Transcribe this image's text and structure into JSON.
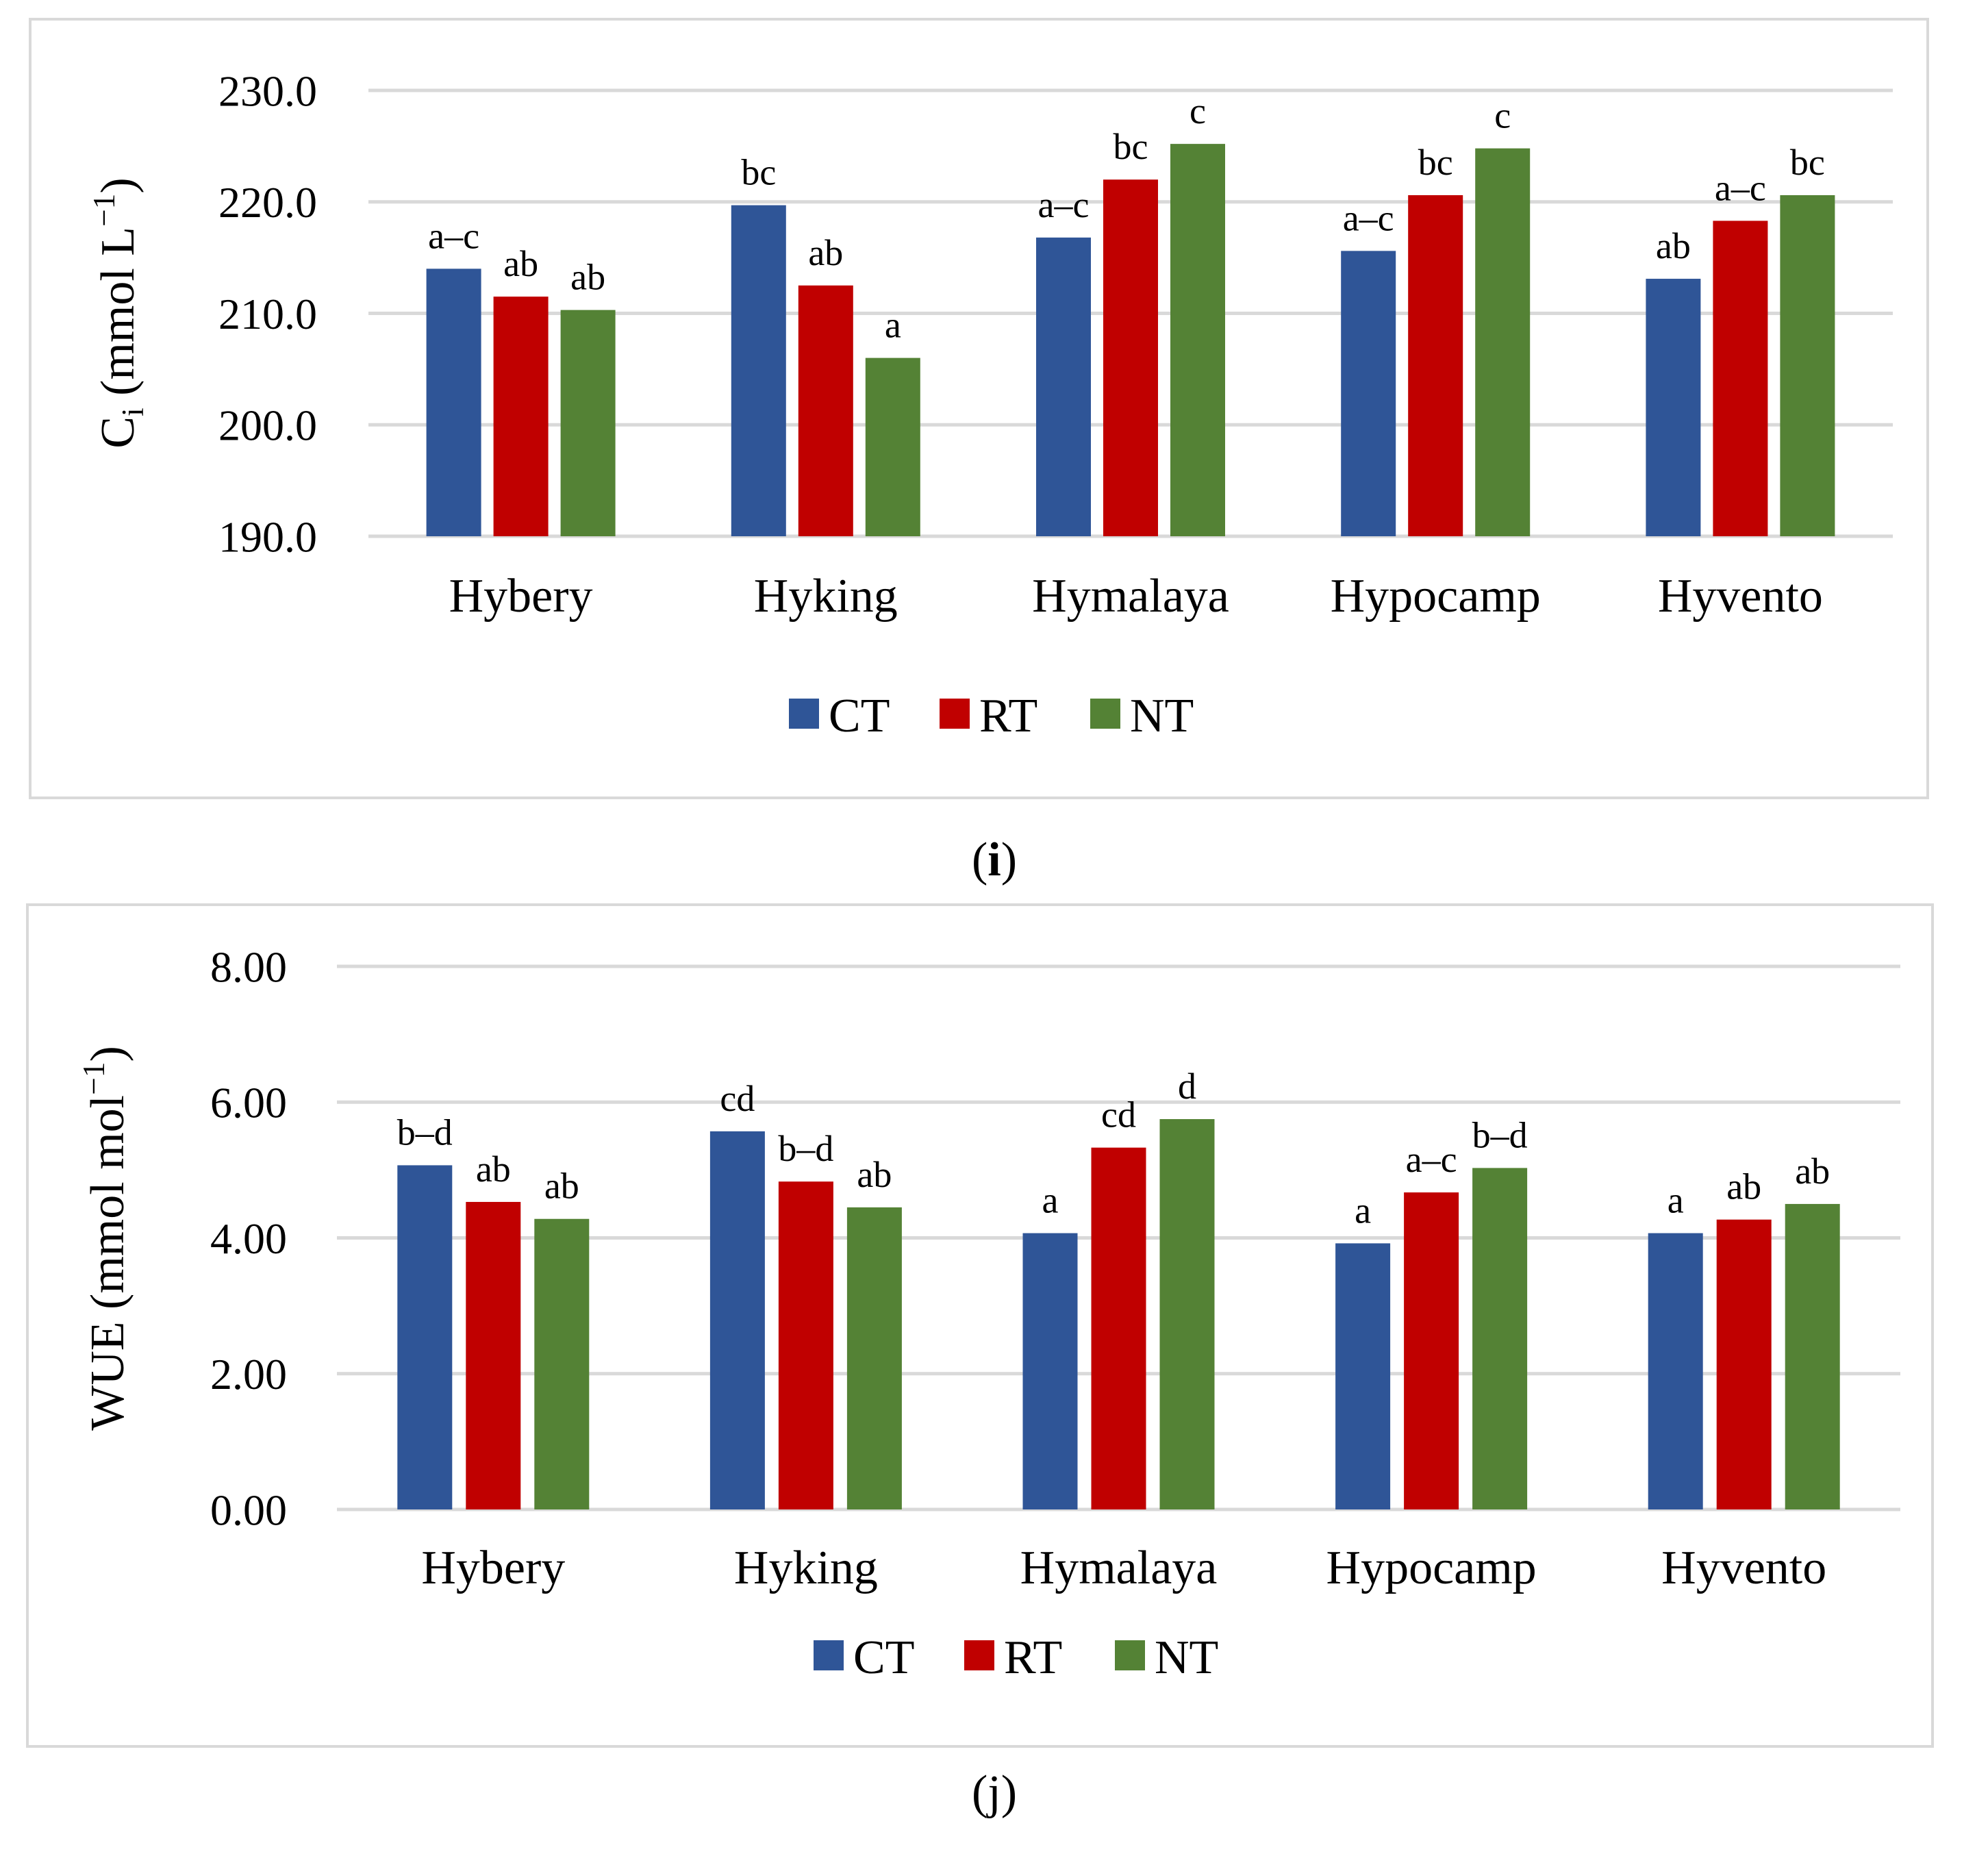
{
  "panels": [
    {
      "caption_letter": "i",
      "chart_data": {
        "type": "bar",
        "categories": [
          "Hybery",
          "Hyking",
          "Hymalaya",
          "Hypocamp",
          "Hyvento"
        ],
        "series": [
          {
            "name": "CT",
            "values": [
              214.0,
              219.7,
              216.8,
              215.6,
              213.1
            ],
            "labels": [
              "a–c",
              "bc",
              "a–c",
              "a–c",
              "ab"
            ]
          },
          {
            "name": "RT",
            "values": [
              211.5,
              212.5,
              222.0,
              220.6,
              218.3
            ],
            "labels": [
              "ab",
              "ab",
              "bc",
              "bc",
              "a–c"
            ]
          },
          {
            "name": "NT",
            "values": [
              210.3,
              206.0,
              225.2,
              224.8,
              220.6
            ],
            "labels": [
              "ab",
              "a",
              "c",
              "c",
              "bc"
            ]
          }
        ],
        "ylabel_main": "C",
        "ylabel_sub": "i",
        "ylabel_unit": " (mmol L",
        "ylabel_exp": "−1",
        "ylabel_close": ")",
        "ylim": [
          190,
          230
        ],
        "yticks": [
          "190.0",
          "200.0",
          "210.0",
          "220.0",
          "230.0"
        ],
        "legend": [
          "CT",
          "RT",
          "NT"
        ],
        "legend_position": "bottom"
      }
    },
    {
      "caption_letter": "j",
      "chart_data": {
        "type": "bar",
        "categories": [
          "Hybery",
          "Hyking",
          "Hymalaya",
          "Hypocamp",
          "Hyvento"
        ],
        "series": [
          {
            "name": "CT",
            "values": [
              5.07,
              5.57,
              4.07,
              3.92,
              4.07
            ],
            "labels": [
              "b–d",
              "cd",
              "a",
              "a",
              "a"
            ]
          },
          {
            "name": "RT",
            "values": [
              4.53,
              4.83,
              5.33,
              4.67,
              4.27
            ],
            "labels": [
              "ab",
              "b–d",
              "cd",
              "a–c",
              "ab"
            ]
          },
          {
            "name": "NT",
            "values": [
              4.28,
              4.45,
              5.75,
              5.03,
              4.5
            ],
            "labels": [
              "ab",
              "ab",
              "d",
              "b–d",
              "ab"
            ]
          }
        ],
        "ylabel_main": "WUE (mmol mol",
        "ylabel_exp": "−1",
        "ylabel_close": ")",
        "ylim": [
          0,
          8
        ],
        "yticks": [
          "0.00",
          "2.00",
          "4.00",
          "6.00",
          "8.00"
        ],
        "legend": [
          "CT",
          "RT",
          "NT"
        ],
        "legend_position": "bottom"
      }
    }
  ],
  "colors": {
    "CT": "#2f5597",
    "RT": "#c00000",
    "NT": "#548235",
    "grid": "#d9d9d9",
    "frame": "#d9d9d9"
  }
}
